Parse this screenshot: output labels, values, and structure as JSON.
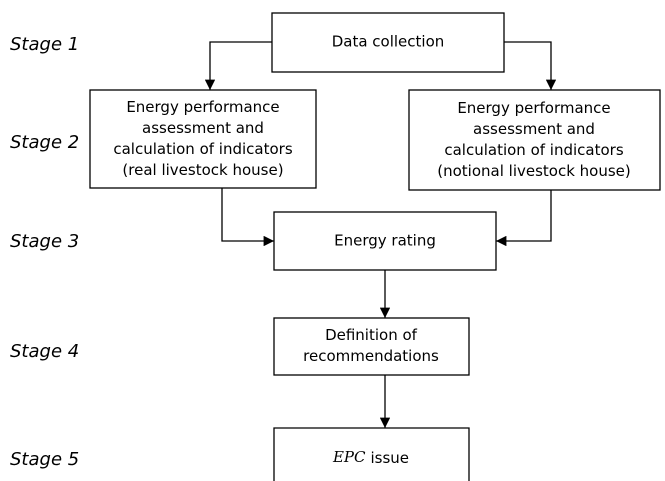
{
  "stages": [
    "Stage 1",
    "Stage 2",
    "Stage 3",
    "Stage 4",
    "Stage 5"
  ],
  "nodes": [
    {
      "lines": [
        "Data collection"
      ]
    },
    {
      "lines": [
        "Energy performance",
        "assessment and",
        "calculation of indicators",
        "(real livestock house)"
      ]
    },
    {
      "lines": [
        "Energy performance",
        "assessment and",
        "calculation of indicators",
        "(notional livestock house)"
      ]
    },
    {
      "lines": [
        "Energy rating"
      ]
    },
    {
      "lines": [
        "Definition of",
        "recommendations"
      ]
    },
    {
      "emphasis": "EPC",
      "lines": [
        "issue"
      ]
    }
  ]
}
